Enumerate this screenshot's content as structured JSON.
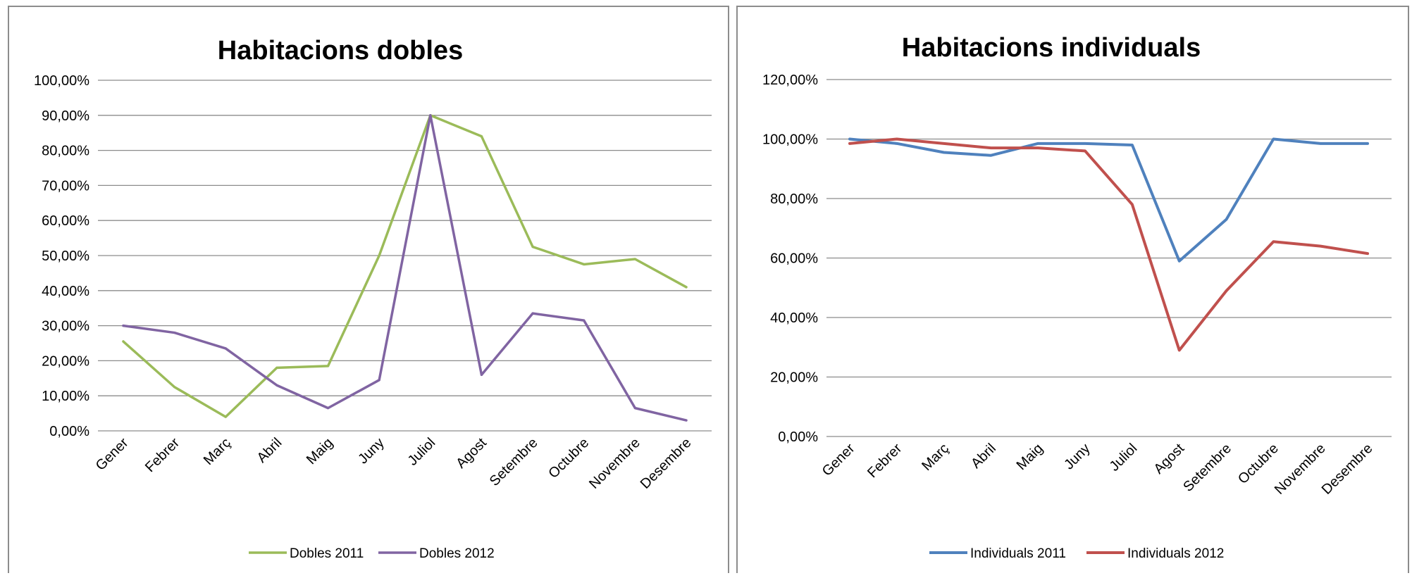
{
  "chart_data": [
    {
      "type": "line",
      "title": "Habitacions dobles",
      "xlabel": "",
      "ylabel": "",
      "categories": [
        "Gener",
        "Febrer",
        "Març",
        "Abril",
        "Maig",
        "Juny",
        "Juliol",
        "Agost",
        "Setembre",
        "Octubre",
        "Novembre",
        "Desembre"
      ],
      "y_ticks": [
        "0,00%",
        "10,00%",
        "20,00%",
        "30,00%",
        "40,00%",
        "50,00%",
        "60,00%",
        "70,00%",
        "80,00%",
        "90,00%",
        "100,00%"
      ],
      "ylim": [
        0,
        100
      ],
      "grid": true,
      "legend_position": "bottom",
      "series": [
        {
          "name": "Dobles 2011",
          "color": "#9bbb59",
          "values": [
            25.5,
            12.5,
            4.0,
            18.0,
            18.5,
            50.0,
            90.0,
            84.0,
            52.5,
            47.5,
            49.0,
            41.0
          ]
        },
        {
          "name": "Dobles 2012",
          "color": "#8064a2",
          "values": [
            30.0,
            28.0,
            23.5,
            13.0,
            6.5,
            14.5,
            90.0,
            16.0,
            33.5,
            31.5,
            6.5,
            3.0
          ]
        }
      ]
    },
    {
      "type": "line",
      "title": "Habitacions individuals",
      "xlabel": "",
      "ylabel": "",
      "categories": [
        "Gener",
        "Febrer",
        "Març",
        "Abril",
        "Maig",
        "Juny",
        "Juliol",
        "Agost",
        "Setembre",
        "Octubre",
        "Novembre",
        "Desembre"
      ],
      "y_ticks": [
        "0,00%",
        "20,00%",
        "40,00%",
        "60,00%",
        "80,00%",
        "100,00%",
        "120,00%"
      ],
      "ylim": [
        0,
        120
      ],
      "grid": true,
      "legend_position": "bottom",
      "series": [
        {
          "name": "Individuals 2011",
          "color": "#4f81bd",
          "values": [
            100.0,
            98.5,
            95.5,
            94.5,
            98.5,
            98.5,
            98.0,
            59.0,
            73.0,
            100.0,
            98.5,
            98.5
          ]
        },
        {
          "name": "Individuals 2012",
          "color": "#c0504d",
          "values": [
            98.5,
            100.0,
            98.5,
            97.0,
            97.0,
            96.0,
            78.0,
            29.0,
            49.0,
            65.5,
            64.0,
            61.5
          ]
        }
      ]
    }
  ]
}
